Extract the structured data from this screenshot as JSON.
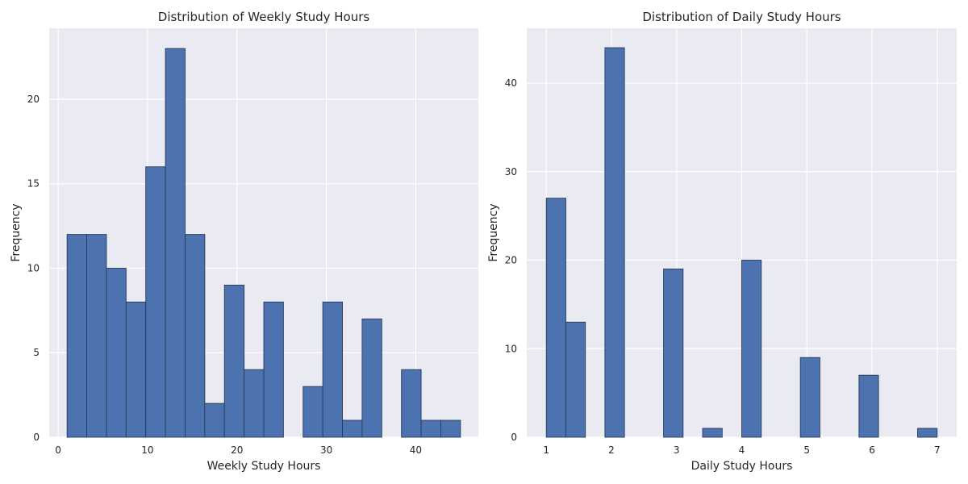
{
  "chart_data": [
    {
      "type": "bar",
      "title": "Distribution of Weekly Study Hours",
      "xlabel": "Weekly Study Hours",
      "ylabel": "Frequency",
      "xlim": [
        -1,
        47
      ],
      "ylim": [
        0,
        24.2
      ],
      "xticks": [
        0,
        10,
        20,
        30,
        40
      ],
      "yticks": [
        0,
        5,
        10,
        15,
        20
      ],
      "grid": true,
      "bin_edges": [
        1,
        3.2,
        5.4,
        7.6,
        9.8,
        12,
        14.2,
        16.4,
        18.6,
        20.8,
        23,
        25.2,
        27.4,
        29.6,
        31.8,
        34,
        36.2,
        38.4,
        40.6,
        42.8,
        45
      ],
      "values": [
        12,
        12,
        10,
        8,
        16,
        23,
        12,
        2,
        9,
        4,
        8,
        0,
        3,
        8,
        1,
        7,
        0,
        4,
        1,
        1
      ]
    },
    {
      "type": "bar",
      "title": "Distribution of Daily Study Hours",
      "xlabel": "Daily Study Hours",
      "ylabel": "Frequency",
      "xlim": [
        0.7,
        7.3
      ],
      "ylim": [
        0,
        46.2
      ],
      "xticks": [
        1,
        2,
        3,
        4,
        5,
        6,
        7
      ],
      "yticks": [
        0,
        10,
        20,
        30,
        40
      ],
      "grid": true,
      "bin_edges": [
        1,
        1.3,
        1.6,
        1.9,
        2.2,
        2.5,
        2.8,
        3.1,
        3.4,
        3.7,
        4,
        4.3,
        4.6,
        4.9,
        5.2,
        5.5,
        5.8,
        6.1,
        6.4,
        6.7,
        7
      ],
      "values": [
        27,
        13,
        0,
        44,
        0,
        0,
        19,
        0,
        1,
        0,
        20,
        0,
        0,
        9,
        0,
        0,
        7,
        0,
        0,
        1
      ]
    }
  ]
}
